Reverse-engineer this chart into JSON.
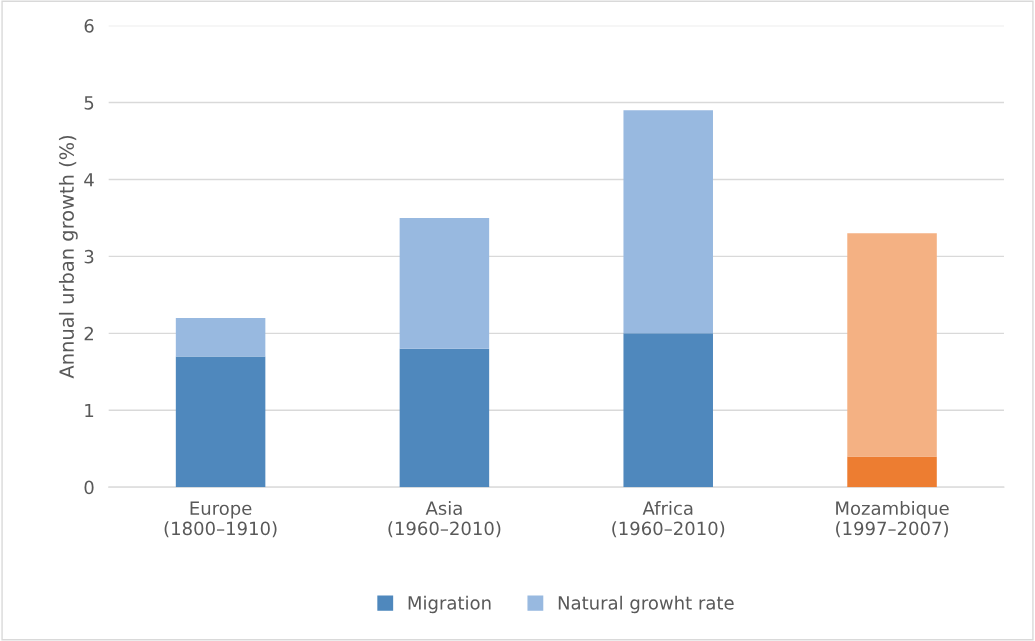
{
  "chart_data": {
    "type": "bar",
    "stacked": true,
    "ylabel": "Annual urban growth (%)",
    "categories": [
      "Europe\n(1800–1910)",
      "Asia\n(1960–2010)",
      "Africa\n(1960–2010)",
      "Mozambique\n(1997–2007)"
    ],
    "series": [
      {
        "name": "Migration",
        "color": "#4f88bd",
        "colors": [
          "#4f88bd",
          "#4f88bd",
          "#4f88bd",
          "#ed7d31"
        ],
        "values": [
          1.7,
          1.8,
          2.0,
          0.4
        ]
      },
      {
        "name": "Natural growht rate",
        "color": "#98b9e0",
        "colors": [
          "#98b9e0",
          "#98b9e0",
          "#98b9e0",
          "#f4b183"
        ],
        "values": [
          0.5,
          1.7,
          2.9,
          2.9
        ]
      }
    ],
    "ylim": [
      0,
      6
    ],
    "yticks": [
      0,
      1,
      2,
      3,
      4,
      5,
      6
    ],
    "grid": "y",
    "legend": "bottom"
  }
}
